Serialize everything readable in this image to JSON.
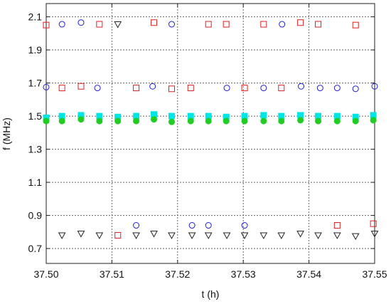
{
  "chart_data": {
    "type": "scatter",
    "title": "",
    "xlabel": "t (h)",
    "ylabel": "f (MHz)",
    "xlim": [
      37.5,
      37.55
    ],
    "ylim": [
      0.61,
      2.18
    ],
    "grid": true,
    "xticks": [
      37.5,
      37.51,
      37.52,
      37.53,
      37.54,
      37.55
    ],
    "xtick_labels": [
      "37.50",
      "37.51",
      "37.52",
      "37.53",
      "37.54",
      "37.55"
    ],
    "yticks": [
      0.7,
      0.9,
      1.1,
      1.3,
      1.5,
      1.7,
      1.9,
      2.1
    ],
    "ytick_labels": [
      "0.7",
      "0.9",
      "1.1",
      "1.3",
      "1.5",
      "1.7",
      "1.9",
      "2.1"
    ],
    "series": [
      {
        "marker": "circle-open",
        "color": "#1f1fd6",
        "points": [
          [
            37.5,
            1.675
          ],
          [
            37.5024,
            2.055
          ],
          [
            37.5053,
            2.065
          ],
          [
            37.5078,
            1.67
          ],
          [
            37.5137,
            0.84
          ],
          [
            37.5162,
            1.68
          ],
          [
            37.5191,
            2.055
          ],
          [
            37.5222,
            0.84
          ],
          [
            37.5247,
            0.84
          ],
          [
            37.5275,
            1.67
          ],
          [
            37.5302,
            0.84
          ],
          [
            37.5331,
            1.67
          ],
          [
            37.5359,
            2.055
          ],
          [
            37.5388,
            1.68
          ],
          [
            37.5417,
            1.67
          ],
          [
            37.5443,
            1.67
          ],
          [
            37.5471,
            1.665
          ],
          [
            37.55,
            1.68
          ]
        ]
      },
      {
        "marker": "square-open",
        "color": "#e02020",
        "points": [
          [
            37.5,
            2.05
          ],
          [
            37.5024,
            1.67
          ],
          [
            37.5053,
            1.68
          ],
          [
            37.5081,
            2.055
          ],
          [
            37.5109,
            0.78
          ],
          [
            37.5137,
            1.67
          ],
          [
            37.5164,
            2.065
          ],
          [
            37.5191,
            1.665
          ],
          [
            37.522,
            1.67
          ],
          [
            37.5247,
            2.055
          ],
          [
            37.5274,
            2.055
          ],
          [
            37.5302,
            1.67
          ],
          [
            37.5331,
            2.055
          ],
          [
            37.5358,
            1.67
          ],
          [
            37.5387,
            2.065
          ],
          [
            37.5414,
            2.055
          ],
          [
            37.5443,
            0.84
          ],
          [
            37.5471,
            2.05
          ],
          [
            37.5498,
            0.85
          ]
        ]
      },
      {
        "marker": "triangle-down-open",
        "color": "#222222",
        "points": [
          [
            37.5024,
            0.78
          ],
          [
            37.5053,
            0.79
          ],
          [
            37.5081,
            0.78
          ],
          [
            37.5109,
            2.055
          ],
          [
            37.5137,
            0.78
          ],
          [
            37.5164,
            0.79
          ],
          [
            37.5191,
            0.78
          ],
          [
            37.5222,
            0.78
          ],
          [
            37.5247,
            0.78
          ],
          [
            37.5275,
            0.78
          ],
          [
            37.5302,
            0.78
          ],
          [
            37.5331,
            0.78
          ],
          [
            37.5358,
            0.78
          ],
          [
            37.5387,
            0.79
          ],
          [
            37.5414,
            0.78
          ],
          [
            37.5443,
            0.78
          ],
          [
            37.5471,
            0.775
          ],
          [
            37.55,
            0.79
          ]
        ]
      },
      {
        "marker": "square-filled",
        "color": "#00e5e5",
        "points": [
          [
            37.5,
            1.49
          ],
          [
            37.5024,
            1.5
          ],
          [
            37.5053,
            1.505
          ],
          [
            37.5081,
            1.5
          ],
          [
            37.5109,
            1.495
          ],
          [
            37.5137,
            1.5
          ],
          [
            37.5164,
            1.51
          ],
          [
            37.5191,
            1.5
          ],
          [
            37.522,
            1.5
          ],
          [
            37.5247,
            1.5
          ],
          [
            37.5274,
            1.495
          ],
          [
            37.5302,
            1.5
          ],
          [
            37.5331,
            1.505
          ],
          [
            37.5358,
            1.5
          ],
          [
            37.5387,
            1.505
          ],
          [
            37.5414,
            1.5
          ],
          [
            37.5443,
            1.5
          ],
          [
            37.5471,
            1.495
          ],
          [
            37.5498,
            1.505
          ]
        ]
      },
      {
        "marker": "circle-filled",
        "color": "#22cc22",
        "points": [
          [
            37.5,
            1.47
          ],
          [
            37.5024,
            1.47
          ],
          [
            37.5053,
            1.48
          ],
          [
            37.5081,
            1.47
          ],
          [
            37.5109,
            1.47
          ],
          [
            37.5137,
            1.47
          ],
          [
            37.5164,
            1.48
          ],
          [
            37.5191,
            1.465
          ],
          [
            37.522,
            1.47
          ],
          [
            37.5247,
            1.47
          ],
          [
            37.5274,
            1.47
          ],
          [
            37.5302,
            1.47
          ],
          [
            37.5331,
            1.47
          ],
          [
            37.5358,
            1.47
          ],
          [
            37.5387,
            1.475
          ],
          [
            37.5414,
            1.47
          ],
          [
            37.5443,
            1.47
          ],
          [
            37.5471,
            1.47
          ],
          [
            37.5498,
            1.475
          ]
        ]
      }
    ]
  }
}
